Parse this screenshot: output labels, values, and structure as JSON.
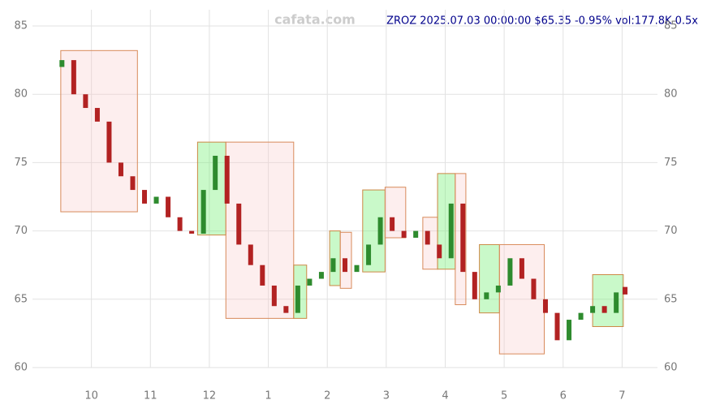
{
  "chart_data": {
    "type": "candlestick",
    "title": "ZROZ 2025.07.03 00:00:00 $65.35 -0.95% vol:177.8K 0.5x",
    "watermark": "cafata.com",
    "x": [
      9.5,
      9.7,
      9.9,
      10.1,
      10.3,
      10.5,
      10.7,
      10.9,
      11.1,
      11.3,
      11.5,
      11.7,
      11.9,
      12.1,
      12.3,
      12.5,
      12.7,
      12.9,
      13.1,
      13.3,
      13.5,
      13.7,
      13.9,
      14.1,
      14.3,
      14.5,
      14.7,
      14.9,
      15.1,
      15.3,
      15.5,
      15.7,
      15.9,
      16.1,
      16.3,
      16.5,
      16.7,
      16.9,
      17.1,
      17.3,
      17.5,
      17.7,
      17.9,
      18.1,
      18.3,
      18.5,
      18.7,
      18.9,
      19.05
    ],
    "open": [
      82,
      82.5,
      80,
      79,
      78,
      75,
      74,
      73,
      72,
      72.5,
      71,
      70,
      69.8,
      73,
      75.5,
      72,
      69,
      67.5,
      66,
      64.5,
      64,
      66,
      66.5,
      67,
      68,
      67,
      67.5,
      69,
      71,
      70,
      69.5,
      70,
      69,
      68,
      72,
      67,
      65,
      65.5,
      66,
      68,
      66.5,
      65,
      64,
      62,
      63.5,
      64,
      64.5,
      64,
      65.9
    ],
    "close": [
      82.5,
      80,
      79,
      78,
      75,
      74,
      73,
      72,
      72.5,
      71,
      70,
      69.8,
      73,
      75.5,
      72,
      69,
      67.5,
      66,
      64.5,
      64,
      66,
      66.5,
      67,
      68,
      67,
      67.5,
      69,
      71,
      70,
      69.5,
      70,
      69,
      68,
      72,
      67,
      65,
      65.5,
      66,
      68,
      66.5,
      65,
      64,
      62,
      63.5,
      64,
      64.5,
      64,
      65.5,
      65.35
    ],
    "boxes": [
      {
        "x": [
          9.48,
          10.78
        ],
        "y": [
          71.4,
          83.2
        ],
        "color": "#f4a08a"
      },
      {
        "x": [
          11.8,
          12.28
        ],
        "y": [
          69.7,
          76.5
        ],
        "color": "#5ec75e"
      },
      {
        "x": [
          12.28,
          13.43
        ],
        "y": [
          63.6,
          76.5
        ],
        "color": "#f4a08a"
      },
      {
        "x": [
          13.43,
          13.65
        ],
        "y": [
          63.6,
          67.5
        ],
        "color": "#5ec75e"
      },
      {
        "x": [
          14.04,
          14.22
        ],
        "y": [
          66,
          70
        ],
        "color": "#5ec75e"
      },
      {
        "x": [
          14.22,
          14.41
        ],
        "y": [
          65.8,
          69.9
        ],
        "color": "#f4a08a"
      },
      {
        "x": [
          14.6,
          14.98
        ],
        "y": [
          67,
          73
        ],
        "color": "#5ec75e"
      },
      {
        "x": [
          14.98,
          15.33
        ],
        "y": [
          69.5,
          73.2
        ],
        "color": "#f4a08a"
      },
      {
        "x": [
          15.62,
          15.87
        ],
        "y": [
          67.2,
          71
        ],
        "color": "#f4a08a"
      },
      {
        "x": [
          15.87,
          16.17
        ],
        "y": [
          67.2,
          74.2
        ],
        "color": "#5ec75e"
      },
      {
        "x": [
          16.17,
          16.35
        ],
        "y": [
          64.6,
          74.2
        ],
        "color": "#f4a08a"
      },
      {
        "x": [
          16.58,
          16.92
        ],
        "y": [
          64,
          69
        ],
        "color": "#5ec75e"
      },
      {
        "x": [
          16.92,
          17.68
        ],
        "y": [
          61,
          69
        ],
        "color": "#f4a08a"
      },
      {
        "x": [
          18.5,
          19.02
        ],
        "y": [
          63,
          66.8
        ],
        "color": "#5ec75e"
      }
    ],
    "up_color": "#2e8b2e",
    "down_color": "#b22222",
    "xlim": [
      9.0,
      19.6
    ],
    "xticks": [
      {
        "value": 10,
        "label": "10"
      },
      {
        "value": 11,
        "label": "11"
      },
      {
        "value": 12,
        "label": "12"
      },
      {
        "value": 13,
        "label": "1"
      },
      {
        "value": 14,
        "label": "2"
      },
      {
        "value": 15,
        "label": "3"
      },
      {
        "value": 16,
        "label": "4"
      },
      {
        "value": 17,
        "label": "5"
      },
      {
        "value": 18,
        "label": "6"
      },
      {
        "value": 19,
        "label": "7"
      }
    ],
    "ylim": [
      60,
      85
    ],
    "yticks": [
      60,
      65,
      70,
      75,
      80,
      85
    ],
    "grid": true
  }
}
